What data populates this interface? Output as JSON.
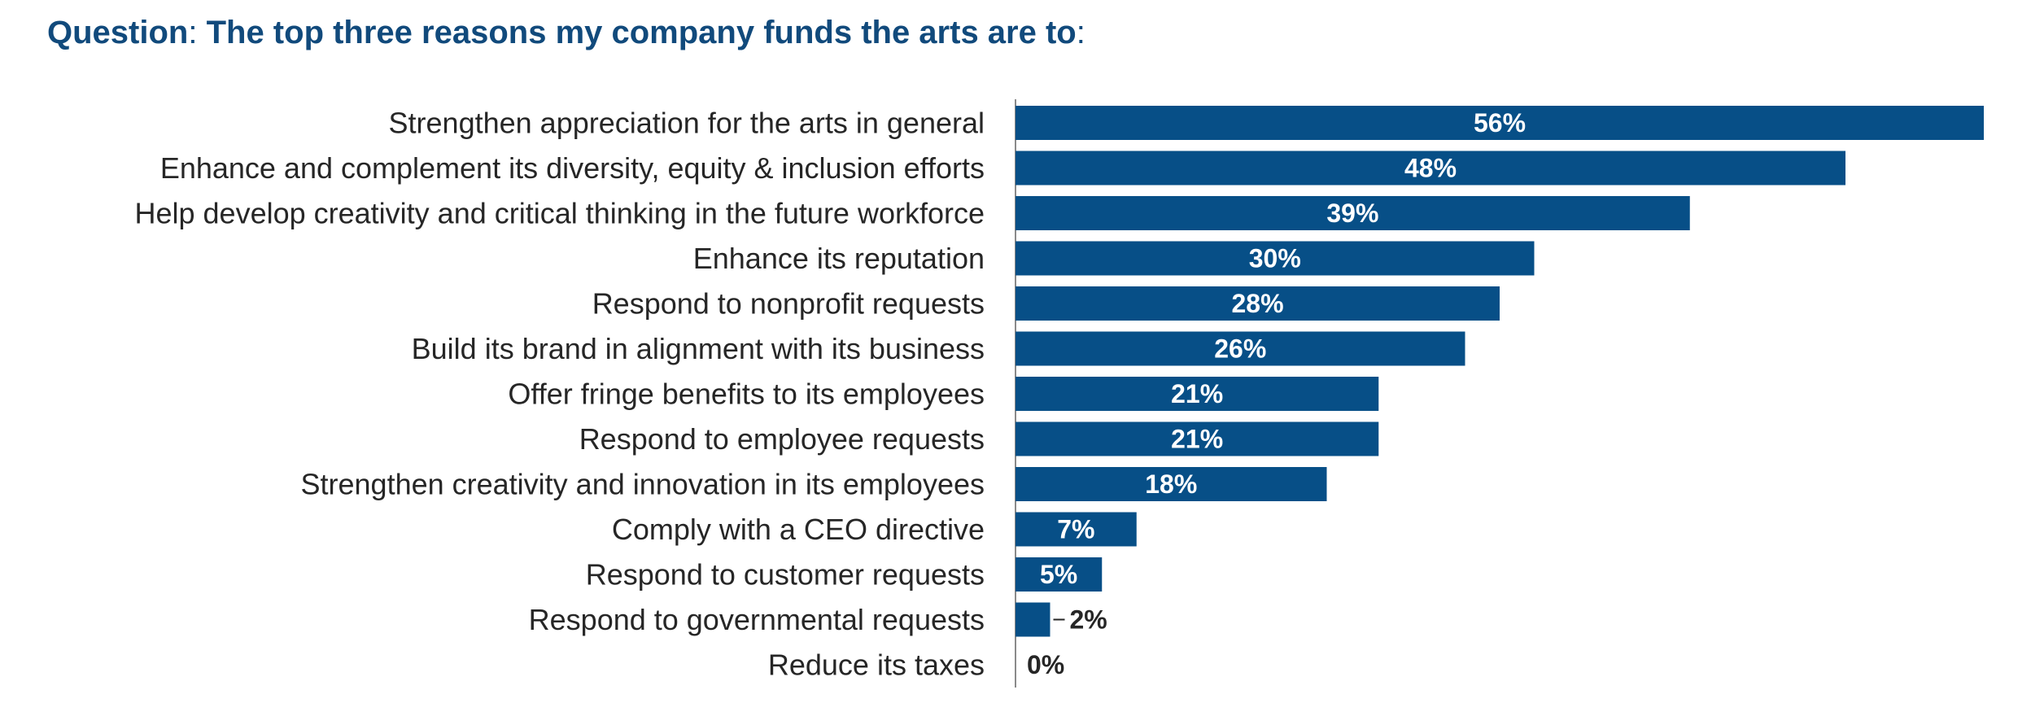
{
  "question": {
    "label": "Question",
    "colon1": ":",
    "text": " The top three reasons my company funds the arts are to",
    "colon2": ":"
  },
  "colors": {
    "bar": "#074f87",
    "title": "#114a7c",
    "axis": "#8a8a8a"
  },
  "chart_data": {
    "type": "bar",
    "orientation": "horizontal",
    "categories": [
      "Strengthen appreciation for the arts in general",
      "Enhance and complement its diversity, equity & inclusion efforts",
      "Help develop creativity and critical thinking in the future workforce",
      "Enhance its reputation",
      "Respond to nonprofit requests",
      "Build its brand in alignment with its business",
      "Offer fringe benefits to its employees",
      "Respond to employee requests",
      "Strengthen creativity and innovation in its employees",
      "Comply with a CEO directive",
      "Respond to customer requests",
      "Respond to governmental requests",
      "Reduce its taxes"
    ],
    "values": [
      56,
      48,
      39,
      30,
      28,
      26,
      21,
      21,
      18,
      7,
      5,
      2,
      0
    ],
    "labels": [
      "56%",
      "48%",
      "39%",
      "30%",
      "28%",
      "26%",
      "21%",
      "21%",
      "18%",
      "7%",
      "5%",
      "2%",
      "0%"
    ],
    "xlim": [
      0,
      56
    ],
    "grid": false,
    "legend": "none"
  }
}
